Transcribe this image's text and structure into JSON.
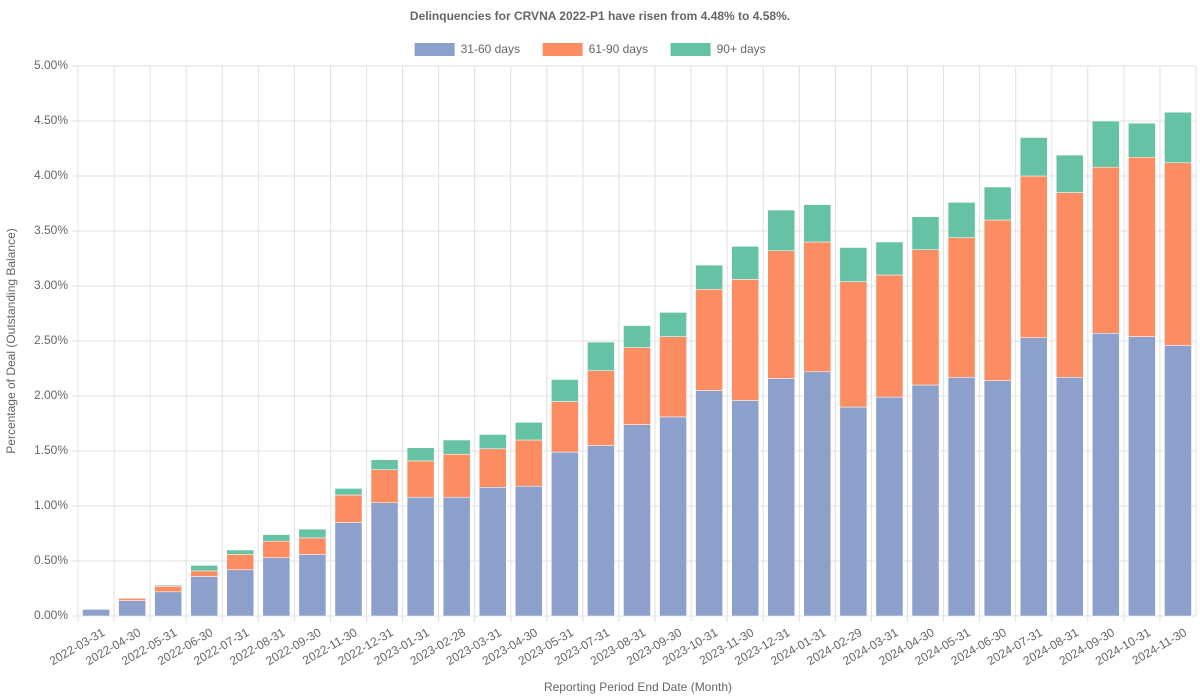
{
  "chart_data": {
    "type": "stacked_bar",
    "title": "Delinquencies for CRVNA 2022-P1 have risen from 4.48% to 4.58%.",
    "x_label": "Reporting Period End Date (Month)",
    "y_label": "Percentage of Deal (Outstanding Balance)",
    "categories": [
      "2022-03-31",
      "2022-04-30",
      "2022-05-31",
      "2022-06-30",
      "2022-07-31",
      "2022-08-31",
      "2022-09-30",
      "2022-11-30",
      "2022-12-31",
      "2023-01-31",
      "2023-02-28",
      "2023-03-31",
      "2023-04-30",
      "2023-05-31",
      "2023-07-31",
      "2023-08-31",
      "2023-09-30",
      "2023-10-31",
      "2023-11-30",
      "2023-12-31",
      "2024-01-31",
      "2024-02-29",
      "2024-03-31",
      "2024-04-30",
      "2024-05-31",
      "2024-06-30",
      "2024-07-31",
      "2024-08-31",
      "2024-09-30",
      "2024-10-31",
      "2024-11-30"
    ],
    "series": [
      {
        "name": "31-60 days",
        "color": "#8da0cb",
        "values": [
          0.06,
          0.14,
          0.22,
          0.36,
          0.42,
          0.53,
          0.56,
          0.85,
          1.03,
          1.08,
          1.08,
          1.17,
          1.18,
          1.49,
          1.55,
          1.74,
          1.81,
          2.05,
          1.96,
          2.16,
          2.22,
          1.9,
          1.99,
          2.1,
          2.17,
          2.14,
          2.53,
          2.17,
          2.57,
          2.54,
          2.46
        ]
      },
      {
        "name": "61-90 days",
        "color": "#fc8d62",
        "values": [
          0,
          0.02,
          0.05,
          0.05,
          0.14,
          0.15,
          0.15,
          0.25,
          0.3,
          0.33,
          0.39,
          0.35,
          0.42,
          0.46,
          0.68,
          0.7,
          0.73,
          0.92,
          1.1,
          1.16,
          1.18,
          1.14,
          1.11,
          1.23,
          1.27,
          1.46,
          1.47,
          1.68,
          1.51,
          1.63,
          1.66
        ]
      },
      {
        "name": "90+ days",
        "color": "#66c2a5",
        "values": [
          0,
          0,
          0.01,
          0.05,
          0.04,
          0.06,
          0.08,
          0.06,
          0.09,
          0.12,
          0.13,
          0.13,
          0.16,
          0.2,
          0.26,
          0.2,
          0.22,
          0.22,
          0.3,
          0.37,
          0.34,
          0.31,
          0.3,
          0.3,
          0.32,
          0.3,
          0.35,
          0.34,
          0.42,
          0.31,
          0.46
        ]
      }
    ],
    "ylim": [
      0,
      5
    ],
    "yticks": [
      {
        "value": 0,
        "label": "0.00%"
      },
      {
        "value": 0.5,
        "label": "0.50%"
      },
      {
        "value": 1,
        "label": "1.00%"
      },
      {
        "value": 1.5,
        "label": "1.50%"
      },
      {
        "value": 2,
        "label": "2.00%"
      },
      {
        "value": 2.5,
        "label": "2.50%"
      },
      {
        "value": 3,
        "label": "3.00%"
      },
      {
        "value": 3.5,
        "label": "3.50%"
      },
      {
        "value": 4,
        "label": "4.00%"
      },
      {
        "value": 4.5,
        "label": "4.50%"
      },
      {
        "value": 5,
        "label": "5.00%"
      }
    ],
    "grid": true,
    "legend": "top"
  }
}
